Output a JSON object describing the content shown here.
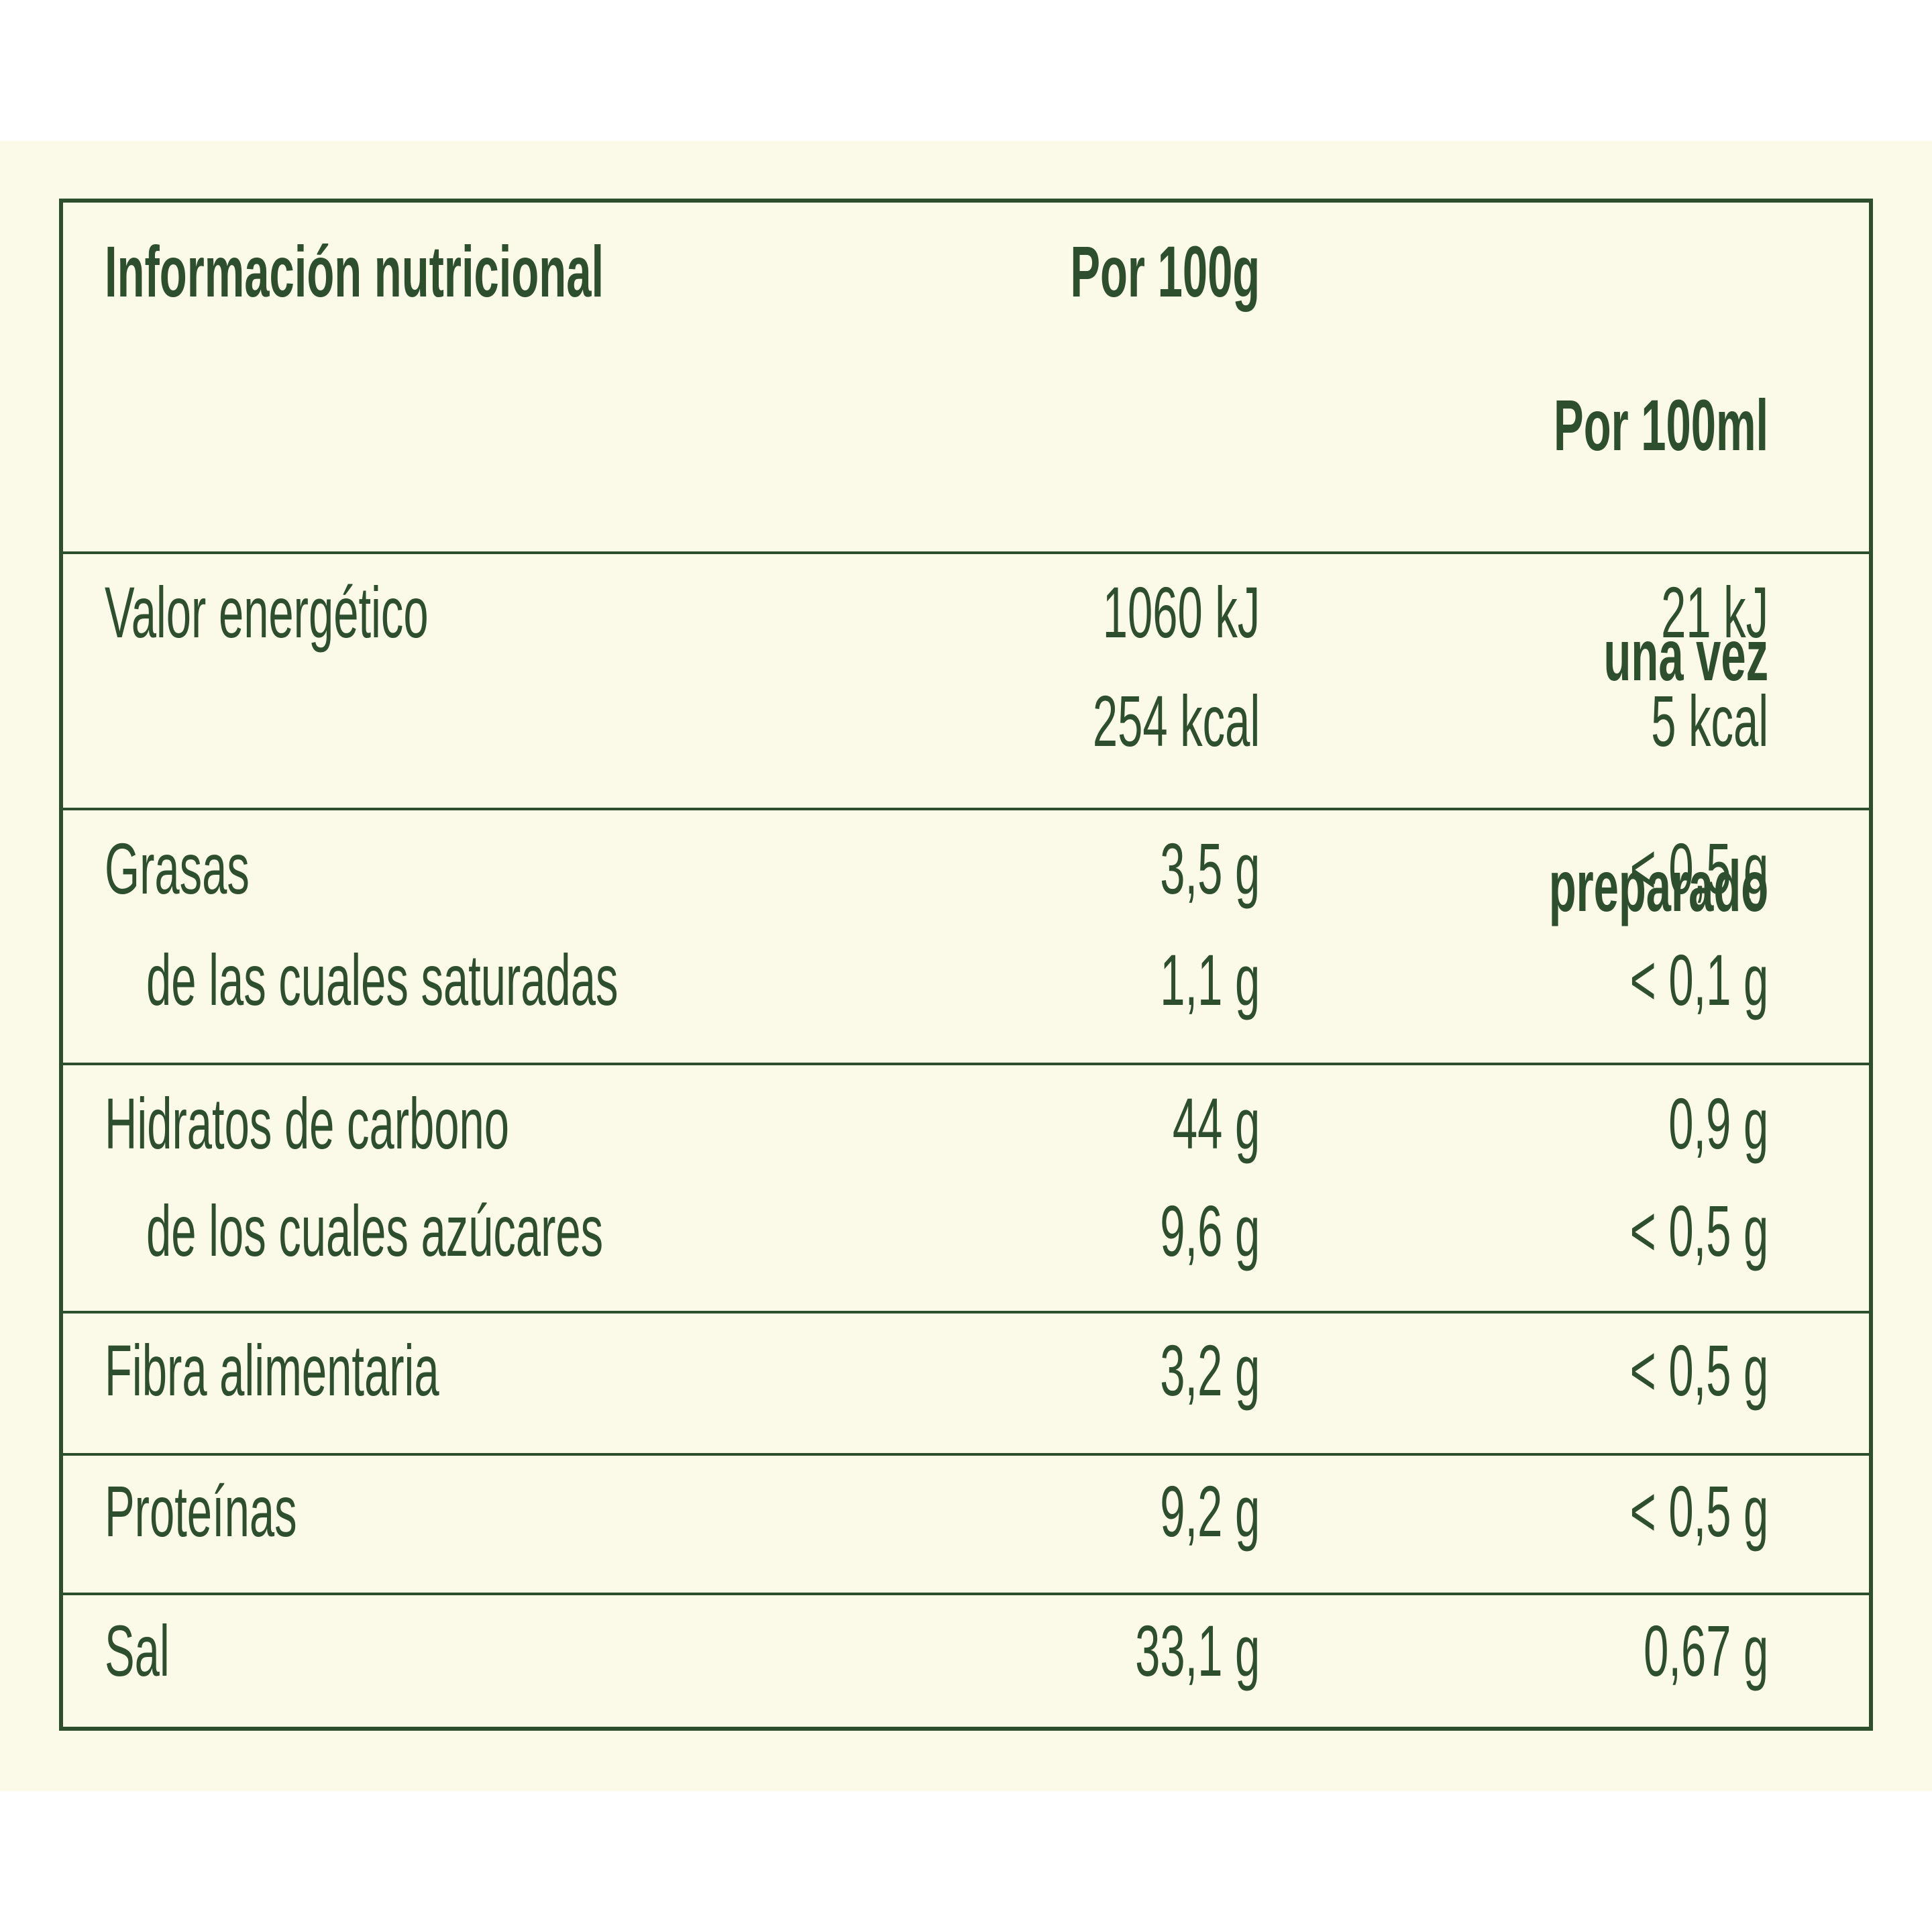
{
  "header": {
    "title": "Información nutricional",
    "col_100g": "Por 100g",
    "col_100ml_lines": [
      "Por 100ml",
      "una vez",
      "preparado"
    ]
  },
  "rows": [
    {
      "lines": [
        {
          "label": "Valor energético",
          "per100g": "1060 kJ",
          "per100ml": "21 kJ"
        },
        {
          "label": "",
          "per100g": "254 kcal",
          "per100ml": "5 kcal"
        }
      ]
    },
    {
      "lines": [
        {
          "label": "Grasas",
          "per100g": "3,5 g",
          "per100ml": "< 0,5 g"
        },
        {
          "label": "de las cuales saturadas",
          "per100g": "1,1 g",
          "per100ml": "< 0,1 g",
          "indent": true
        }
      ]
    },
    {
      "lines": [
        {
          "label": "Hidratos de carbono",
          "per100g": "44 g",
          "per100ml": "0,9 g"
        },
        {
          "label": "de los cuales azúcares",
          "per100g": "9,6 g",
          "per100ml": "< 0,5 g",
          "indent": true
        }
      ]
    },
    {
      "lines": [
        {
          "label": "Fibra alimentaria",
          "per100g": "3,2 g",
          "per100ml": "< 0,5 g"
        }
      ]
    },
    {
      "lines": [
        {
          "label": "Proteínas",
          "per100g": "9,2 g",
          "per100ml": "< 0,5 g"
        }
      ]
    },
    {
      "lines": [
        {
          "label": "Sal",
          "per100g": "33,1 g",
          "per100ml": "0,67 g"
        }
      ]
    }
  ],
  "colors": {
    "text": "#2d4f2e",
    "background": "#fbf9e8",
    "border": "#2d4f2e"
  }
}
